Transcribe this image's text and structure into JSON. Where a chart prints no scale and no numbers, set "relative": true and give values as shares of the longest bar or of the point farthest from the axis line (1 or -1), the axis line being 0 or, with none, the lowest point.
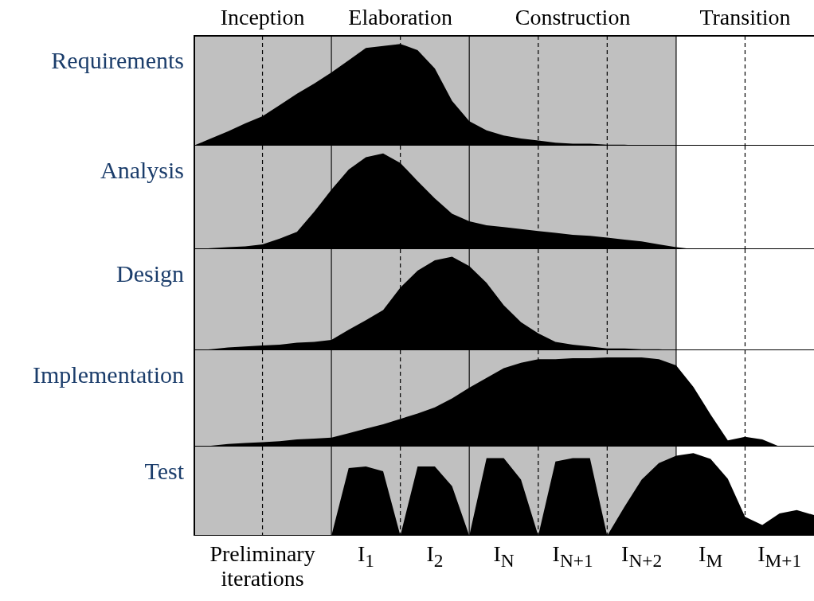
{
  "chart_data": [
    {
      "type": "area",
      "relative": true,
      "ylabel": "Requirements",
      "tick_labels": false,
      "grid": "x",
      "legend": false,
      "annotations": [
        "Inception",
        "Elaboration",
        "Construction",
        "Transition"
      ],
      "categories": [
        null,
        null,
        null,
        null,
        null,
        null,
        null,
        null,
        null,
        null,
        null,
        null,
        null,
        null,
        null,
        null,
        null,
        null,
        null,
        null,
        null,
        null,
        null,
        null,
        null,
        null,
        null,
        null,
        null,
        null,
        null,
        null,
        null,
        null,
        null,
        null,
        null
      ],
      "series": [
        {
          "color": "#000000",
          "values": [
            0,
            0.07,
            0.14,
            0.22,
            0.29,
            0.4,
            0.51,
            0.61,
            0.72,
            0.84,
            0.96,
            0.98,
            1,
            0.94,
            0.76,
            0.44,
            0.24,
            0.15,
            0.1,
            0.07,
            0.05,
            0.03,
            0.02,
            0.02,
            0.01,
            0.01,
            0,
            0,
            0,
            0,
            0,
            0,
            0,
            0,
            0,
            0,
            0
          ]
        }
      ]
    },
    {
      "type": "area",
      "relative": true,
      "ylabel": "Analysis",
      "tick_labels": false,
      "grid": "x",
      "legend": false,
      "categories": [
        null,
        null,
        null,
        null,
        null,
        null,
        null,
        null,
        null,
        null,
        null,
        null,
        null,
        null,
        null,
        null,
        null,
        null,
        null,
        null,
        null,
        null,
        null,
        null,
        null,
        null,
        null,
        null,
        null,
        null,
        null,
        null,
        null,
        null,
        null,
        null,
        null
      ],
      "series": [
        {
          "color": "#000000",
          "values": [
            0,
            0.01,
            0.02,
            0.03,
            0.05,
            0.11,
            0.18,
            0.39,
            0.62,
            0.83,
            0.96,
            1,
            0.9,
            0.71,
            0.53,
            0.37,
            0.29,
            0.25,
            0.23,
            0.21,
            0.19,
            0.17,
            0.15,
            0.14,
            0.12,
            0.1,
            0.08,
            0.05,
            0.02,
            0,
            0,
            0,
            0,
            0,
            0,
            0,
            0
          ]
        }
      ]
    },
    {
      "type": "area",
      "relative": true,
      "ylabel": "Design",
      "tick_labels": false,
      "grid": "x",
      "legend": false,
      "categories": [
        null,
        null,
        null,
        null,
        null,
        null,
        null,
        null,
        null,
        null,
        null,
        null,
        null,
        null,
        null,
        null,
        null,
        null,
        null,
        null,
        null,
        null,
        null,
        null,
        null,
        null,
        null,
        null,
        null,
        null,
        null,
        null,
        null,
        null,
        null,
        null,
        null
      ],
      "series": [
        {
          "color": "#000000",
          "values": [
            0,
            0.01,
            0.03,
            0.04,
            0.05,
            0.06,
            0.08,
            0.09,
            0.11,
            0.22,
            0.32,
            0.43,
            0.67,
            0.85,
            0.96,
            1,
            0.9,
            0.72,
            0.48,
            0.3,
            0.18,
            0.09,
            0.06,
            0.04,
            0.02,
            0.02,
            0.01,
            0.01,
            0,
            0,
            0,
            0,
            0,
            0,
            0,
            0,
            0
          ]
        }
      ]
    },
    {
      "type": "area",
      "relative": true,
      "ylabel": "Implementation",
      "tick_labels": false,
      "grid": "x",
      "legend": false,
      "categories": [
        null,
        null,
        null,
        null,
        null,
        null,
        null,
        null,
        null,
        null,
        null,
        null,
        null,
        null,
        null,
        null,
        null,
        null,
        null,
        null,
        null,
        null,
        null,
        null,
        null,
        null,
        null,
        null,
        null,
        null,
        null,
        null,
        null,
        null,
        null,
        null,
        null
      ],
      "series": [
        {
          "color": "#000000",
          "values": [
            0,
            0.01,
            0.03,
            0.04,
            0.05,
            0.06,
            0.08,
            0.09,
            0.1,
            0.15,
            0.2,
            0.25,
            0.31,
            0.37,
            0.44,
            0.54,
            0.66,
            0.77,
            0.88,
            0.94,
            0.98,
            0.98,
            0.99,
            0.99,
            1,
            1,
            1,
            0.98,
            0.91,
            0.67,
            0.36,
            0.07,
            0.11,
            0.08,
            0,
            0,
            0
          ]
        }
      ]
    },
    {
      "type": "area",
      "relative": true,
      "ylabel": "Test",
      "tick_labels": "x",
      "grid": "x",
      "legend": false,
      "categories": [
        null,
        null,
        null,
        null,
        "Preliminary iterations",
        null,
        null,
        null,
        null,
        null,
        "I$_{1}$",
        null,
        null,
        null,
        "I$_{2}$",
        null,
        null,
        null,
        "I$_{N}$",
        null,
        null,
        null,
        "I$_{N+1}$",
        null,
        null,
        null,
        "I$_{N+2}$",
        null,
        null,
        null,
        "I$_{M}$",
        null,
        null,
        null,
        "I$_{M+1}$",
        null,
        null
      ],
      "series": [
        {
          "color": "#000000",
          "values": [
            0,
            0,
            0,
            0,
            0,
            0,
            0,
            0,
            0,
            0.82,
            0.84,
            0.78,
            0,
            0.84,
            0.84,
            0.6,
            0,
            0.94,
            0.94,
            0.68,
            0,
            0.9,
            0.94,
            0.94,
            0,
            0.35,
            0.68,
            0.88,
            0.97,
            1,
            0.93,
            0.69,
            0.23,
            0.13,
            0.27,
            0.31,
            0.25
          ]
        }
      ]
    }
  ]
}
